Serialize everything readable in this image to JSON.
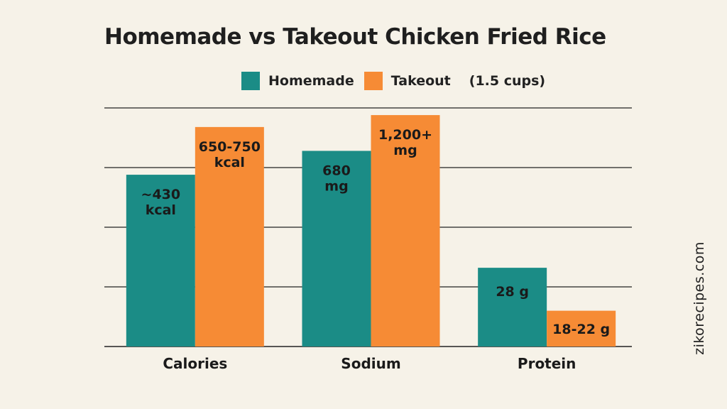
{
  "page": {
    "watermark": "zikorecipes.com",
    "colors": {
      "background": "#f6f2e8",
      "homemade": "#1b8c86",
      "takeout": "#f68b35",
      "grid": "#222222"
    }
  },
  "chart_data": {
    "type": "bar",
    "title": "Homemade vs Takeout Chicken Fried Rice",
    "legend_note": "(1.5 cups)",
    "legend_position": "top",
    "grid": true,
    "categories": [
      "Calories",
      "Sodium",
      "Protein"
    ],
    "series": [
      {
        "name": "Homemade",
        "color": "#1b8c86",
        "values": [
          72,
          82,
          33
        ],
        "labels": [
          "~430\nkcal",
          "680\nmg",
          "28 g"
        ]
      },
      {
        "name": "Takeout",
        "color": "#f68b35",
        "values": [
          92,
          97,
          15
        ],
        "labels": [
          "650-750\nkcal",
          "1,200+\nmg",
          "18-22 g"
        ]
      }
    ],
    "xlabel": "",
    "ylabel": "",
    "ylim": [
      0,
      100
    ]
  }
}
